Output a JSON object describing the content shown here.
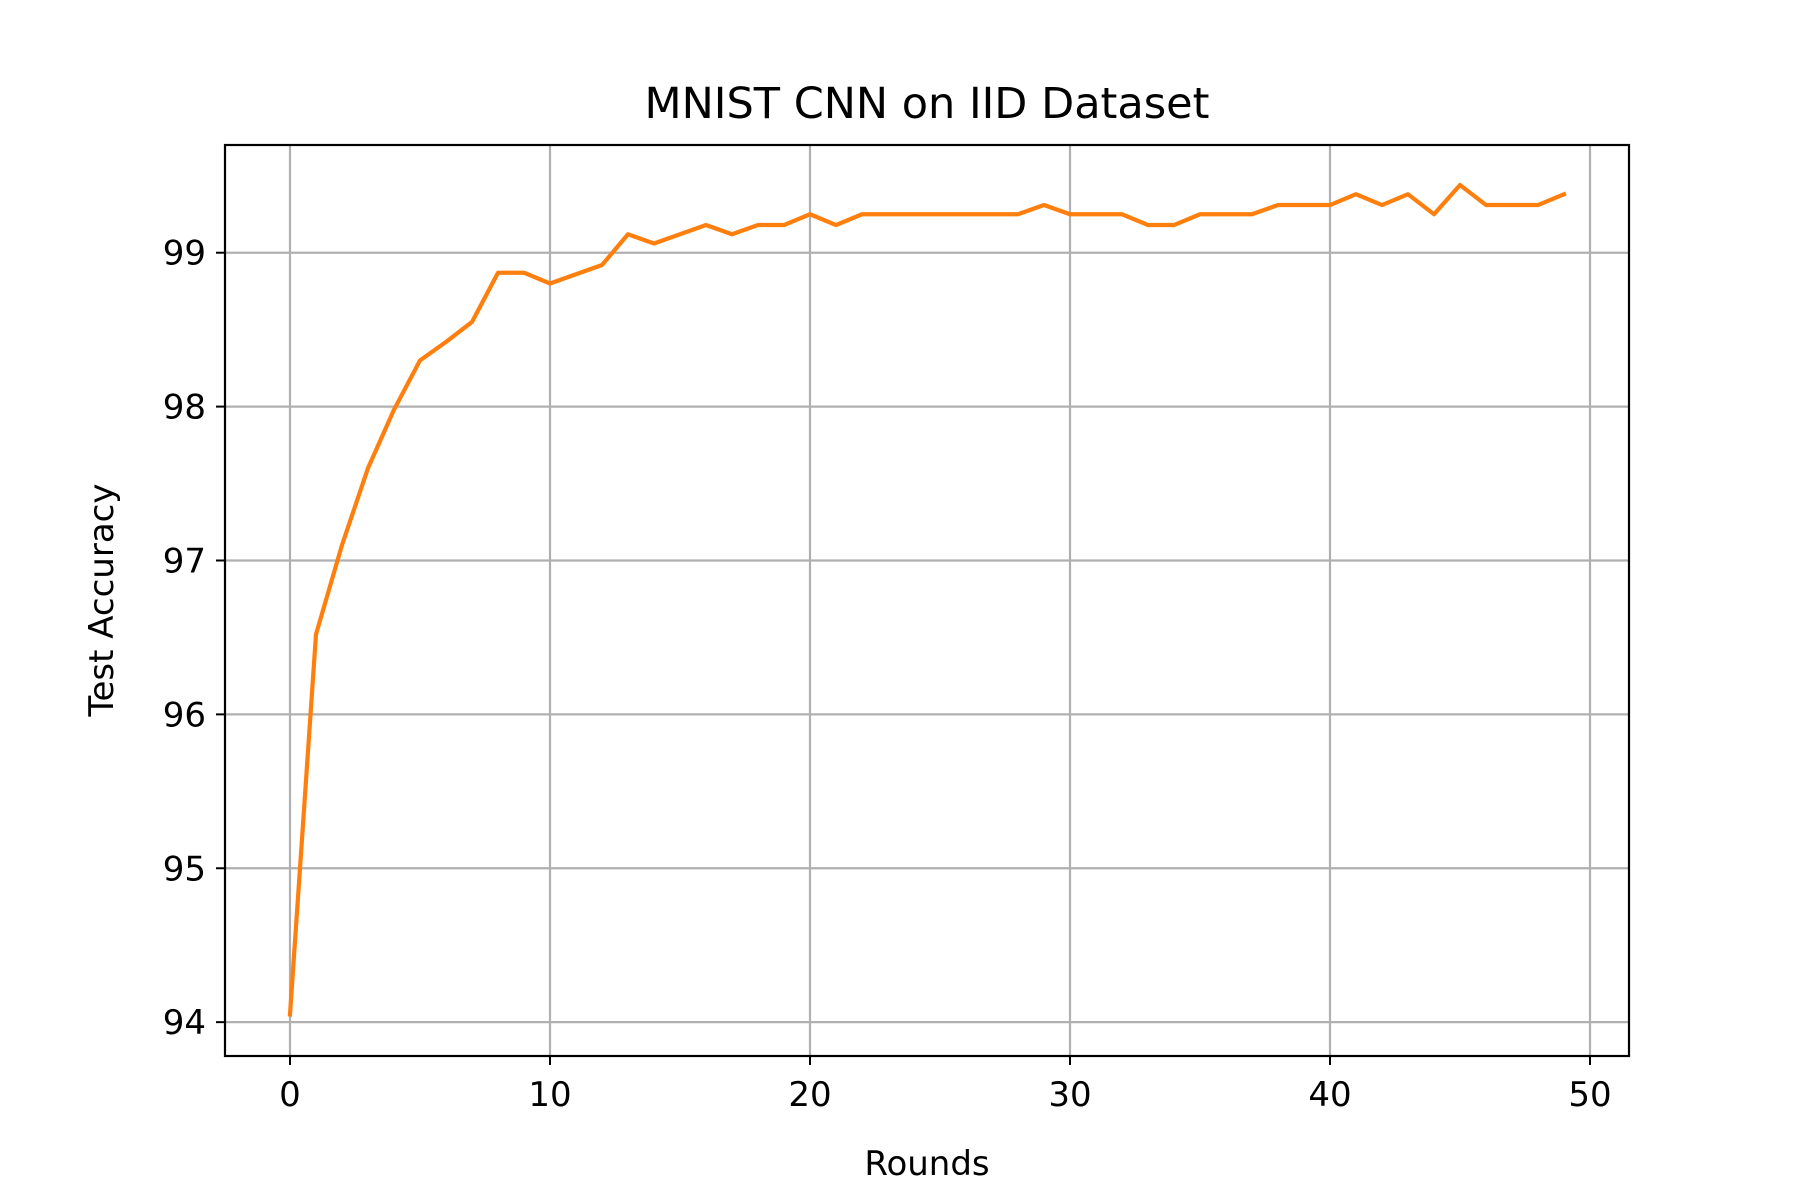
{
  "chart_data": {
    "type": "line",
    "title": "MNIST CNN on IID Dataset",
    "xlabel": "Rounds",
    "ylabel": "Test Accuracy",
    "xlim": [
      -2.5,
      51.5
    ],
    "ylim": [
      93.78,
      99.7
    ],
    "xticks": [
      0,
      10,
      20,
      30,
      40,
      50
    ],
    "yticks": [
      94,
      95,
      96,
      97,
      98,
      99
    ],
    "grid": true,
    "legend": "none",
    "series": [
      {
        "color": "#ff7f0e",
        "x": [
          0,
          1,
          2,
          3,
          4,
          5,
          6,
          7,
          8,
          9,
          10,
          11,
          12,
          13,
          14,
          15,
          16,
          17,
          18,
          19,
          20,
          21,
          22,
          23,
          24,
          25,
          26,
          27,
          28,
          29,
          30,
          31,
          32,
          33,
          34,
          35,
          36,
          37,
          38,
          39,
          40,
          41,
          42,
          43,
          44,
          45,
          46,
          47,
          48,
          49
        ],
        "values": [
          94.05,
          96.52,
          97.1,
          97.6,
          97.98,
          98.3,
          98.42,
          98.55,
          98.87,
          98.87,
          98.8,
          98.86,
          98.92,
          99.12,
          99.06,
          99.12,
          99.18,
          99.12,
          99.18,
          99.18,
          99.25,
          99.18,
          99.25,
          99.25,
          99.25,
          99.25,
          99.25,
          99.25,
          99.25,
          99.31,
          99.25,
          99.25,
          99.25,
          99.18,
          99.18,
          99.25,
          99.25,
          99.25,
          99.31,
          99.31,
          99.31,
          99.38,
          99.31,
          99.38,
          99.25,
          99.44,
          99.31,
          99.31,
          99.31,
          99.38
        ]
      }
    ]
  }
}
